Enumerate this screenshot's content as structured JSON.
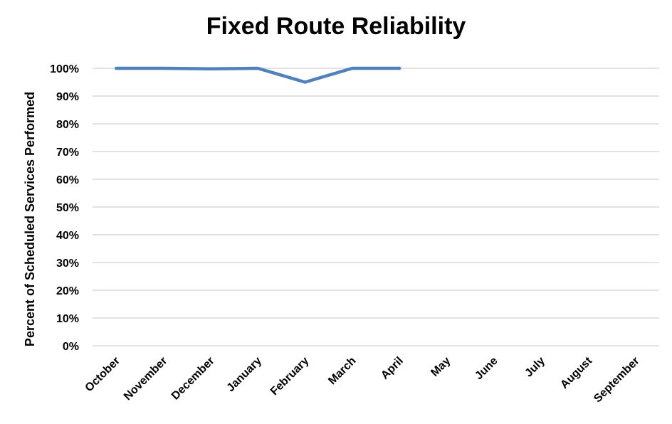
{
  "chart_data": {
    "type": "line",
    "title": "Fixed Route Reliability",
    "xlabel": "",
    "ylabel": "Percent of Scheduled Services Performed",
    "categories": [
      "October",
      "November",
      "December",
      "January",
      "February",
      "March",
      "April",
      "May",
      "June",
      "July",
      "August",
      "September"
    ],
    "series": [
      {
        "values": [
          100,
          100,
          99.8,
          100,
          95,
          100,
          100,
          null,
          null,
          null,
          null,
          null
        ],
        "color": "#4f81bd"
      }
    ],
    "ylim": [
      0,
      100
    ],
    "yticks": [
      "0%",
      "10%",
      "20%",
      "30%",
      "40%",
      "50%",
      "60%",
      "70%",
      "80%",
      "90%",
      "100%"
    ],
    "grid": true,
    "gridColor": "#d9d9d9"
  }
}
